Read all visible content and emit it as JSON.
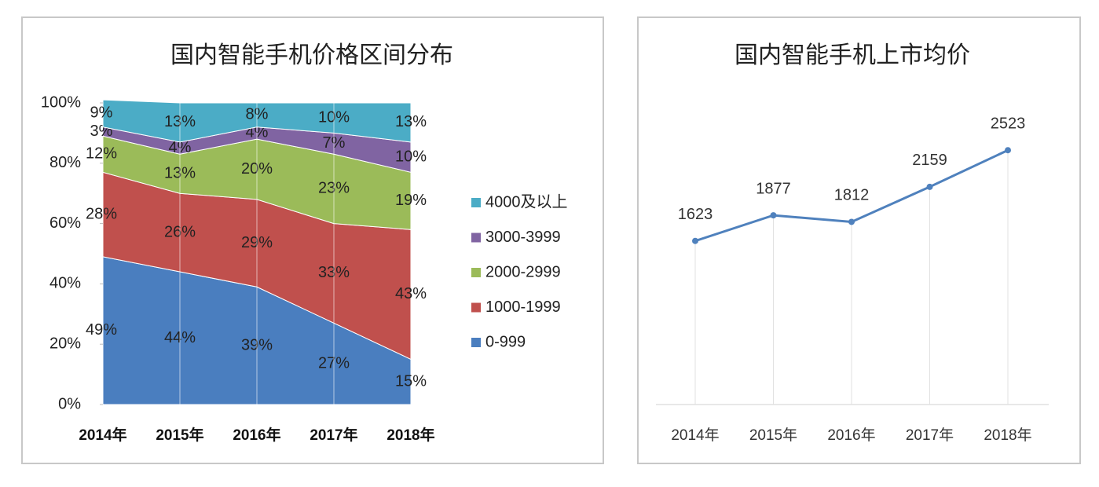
{
  "chart_data": [
    {
      "type": "stacked-area",
      "title": "国内智能手机价格区间分布",
      "categories": [
        "2014年",
        "2015年",
        "2016年",
        "2017年",
        "2018年"
      ],
      "ylim": [
        0,
        100
      ],
      "yticks": [
        {
          "value": 0,
          "label": "0%"
        },
        {
          "value": 20,
          "label": "20%"
        },
        {
          "value": 40,
          "label": "40%"
        },
        {
          "value": 60,
          "label": "60%"
        },
        {
          "value": 80,
          "label": "80%"
        },
        {
          "value": 100,
          "label": "100%"
        }
      ],
      "legend": "right",
      "series": [
        {
          "name": "0-999",
          "color": "#4a7ebf",
          "values": [
            49,
            44,
            39,
            27,
            15
          ],
          "value_labels": [
            "49%",
            "44%",
            "39%",
            "27%",
            "15%"
          ]
        },
        {
          "name": "1000-1999",
          "color": "#c0504d",
          "values": [
            28,
            26,
            29,
            33,
            43
          ],
          "value_labels": [
            "28%",
            "26%",
            "29%",
            "33%",
            "43%"
          ]
        },
        {
          "name": "2000-2999",
          "color": "#9bbb59",
          "values": [
            12,
            13,
            20,
            23,
            19
          ],
          "value_labels": [
            "12%",
            "13%",
            "20%",
            "23%",
            "19%"
          ]
        },
        {
          "name": "3000-3999",
          "color": "#8064a2",
          "values": [
            3,
            4,
            4,
            7,
            10
          ],
          "value_labels": [
            "3%",
            "4%",
            "4%",
            "7%",
            "10%"
          ]
        },
        {
          "name": "4000及以上",
          "color": "#4bacc6",
          "values": [
            9,
            13,
            8,
            10,
            13
          ],
          "value_labels": [
            "9%",
            "13%",
            "8%",
            "10%",
            "13%"
          ]
        }
      ]
    },
    {
      "type": "line",
      "title": "国内智能手机上市均价",
      "categories": [
        "2014年",
        "2015年",
        "2016年",
        "2017年",
        "2018年"
      ],
      "ylim": [
        0,
        3000
      ],
      "color": "#4f81bd",
      "values": [
        1623,
        1877,
        1812,
        2159,
        2523
      ]
    }
  ]
}
